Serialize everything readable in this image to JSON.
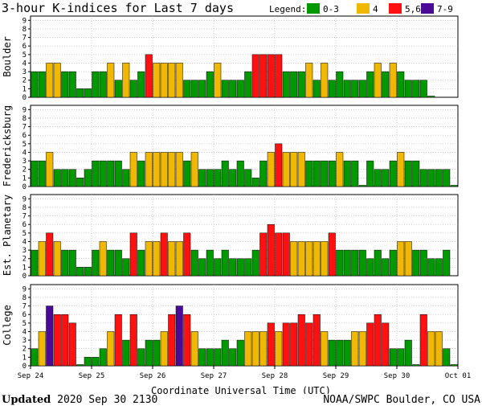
{
  "chart_data": {
    "type": "bar",
    "title": "3-hour K-indices for Last 7 days",
    "legend": {
      "label": "Legend:",
      "placement": "top-right",
      "items": [
        {
          "label": "0-3",
          "color": "#009900"
        },
        {
          "label": "4",
          "color": "#f0b800"
        },
        {
          "label": "5,6",
          "color": "#ff1111"
        },
        {
          "label": "7-9",
          "color": "#4b0a96"
        }
      ]
    },
    "ylim": [
      0,
      9
    ],
    "yticks": [
      "0",
      "1",
      "2",
      "3",
      "4",
      "5",
      "6",
      "7",
      "8",
      "9"
    ],
    "grid": true,
    "xlabel": "Coordinate Universal Time (UTC)",
    "xticks": [
      "Sep 24",
      "Sep 25",
      "Sep 26",
      "Sep 27",
      "Sep 28",
      "Sep 29",
      "Sep 30",
      "Oct 01"
    ],
    "bars_per_day": 8,
    "days": 7,
    "series": [
      {
        "name": "Boulder",
        "values": [
          3,
          3,
          4,
          4,
          3,
          3,
          1,
          1,
          3,
          3,
          4,
          2,
          4,
          2,
          3,
          5,
          4,
          4,
          4,
          4,
          2,
          2,
          2,
          3,
          4,
          2,
          2,
          2,
          3,
          5,
          5,
          5,
          5,
          3,
          3,
          3,
          4,
          2,
          4,
          2,
          3,
          2,
          2,
          2,
          3,
          4,
          3,
          4,
          3,
          2,
          2,
          2,
          0
        ]
      },
      {
        "name": "Fredericksburg",
        "values": [
          3,
          3,
          4,
          2,
          2,
          2,
          1,
          2,
          3,
          3,
          3,
          3,
          2,
          4,
          3,
          4,
          4,
          4,
          4,
          4,
          3,
          4,
          2,
          2,
          2,
          3,
          2,
          3,
          2,
          1,
          3,
          4,
          5,
          4,
          4,
          4,
          3,
          3,
          3,
          3,
          4,
          3,
          3,
          0,
          3,
          2,
          2,
          3,
          4,
          3,
          3,
          2,
          2,
          2,
          2,
          0
        ]
      },
      {
        "name": "Est. Planetary",
        "values": [
          3,
          4,
          5,
          4,
          3,
          3,
          1,
          1,
          3,
          4,
          3,
          3,
          2,
          5,
          3,
          4,
          4,
          5,
          4,
          4,
          5,
          3,
          2,
          3,
          2,
          3,
          2,
          2,
          2,
          3,
          5,
          6,
          5,
          5,
          4,
          4,
          4,
          4,
          4,
          5,
          3,
          3,
          3,
          3,
          2,
          3,
          2,
          3,
          4,
          4,
          3,
          3,
          2,
          2,
          3
        ]
      },
      {
        "name": "College",
        "values": [
          2,
          4,
          7,
          6,
          6,
          5,
          0,
          1,
          1,
          2,
          4,
          6,
          3,
          6,
          2,
          3,
          3,
          4,
          6,
          7,
          6,
          4,
          2,
          2,
          2,
          3,
          2,
          3,
          4,
          4,
          4,
          5,
          4,
          5,
          5,
          6,
          5,
          6,
          4,
          3,
          3,
          3,
          4,
          4,
          5,
          6,
          5,
          2,
          2,
          3,
          0,
          6,
          4,
          4,
          2,
          0
        ]
      }
    ]
  },
  "footer": {
    "updated_label": "Updated",
    "updated_value": "2020 Sep 30 2130",
    "credit": "NOAA/SWPC Boulder, CO USA"
  }
}
